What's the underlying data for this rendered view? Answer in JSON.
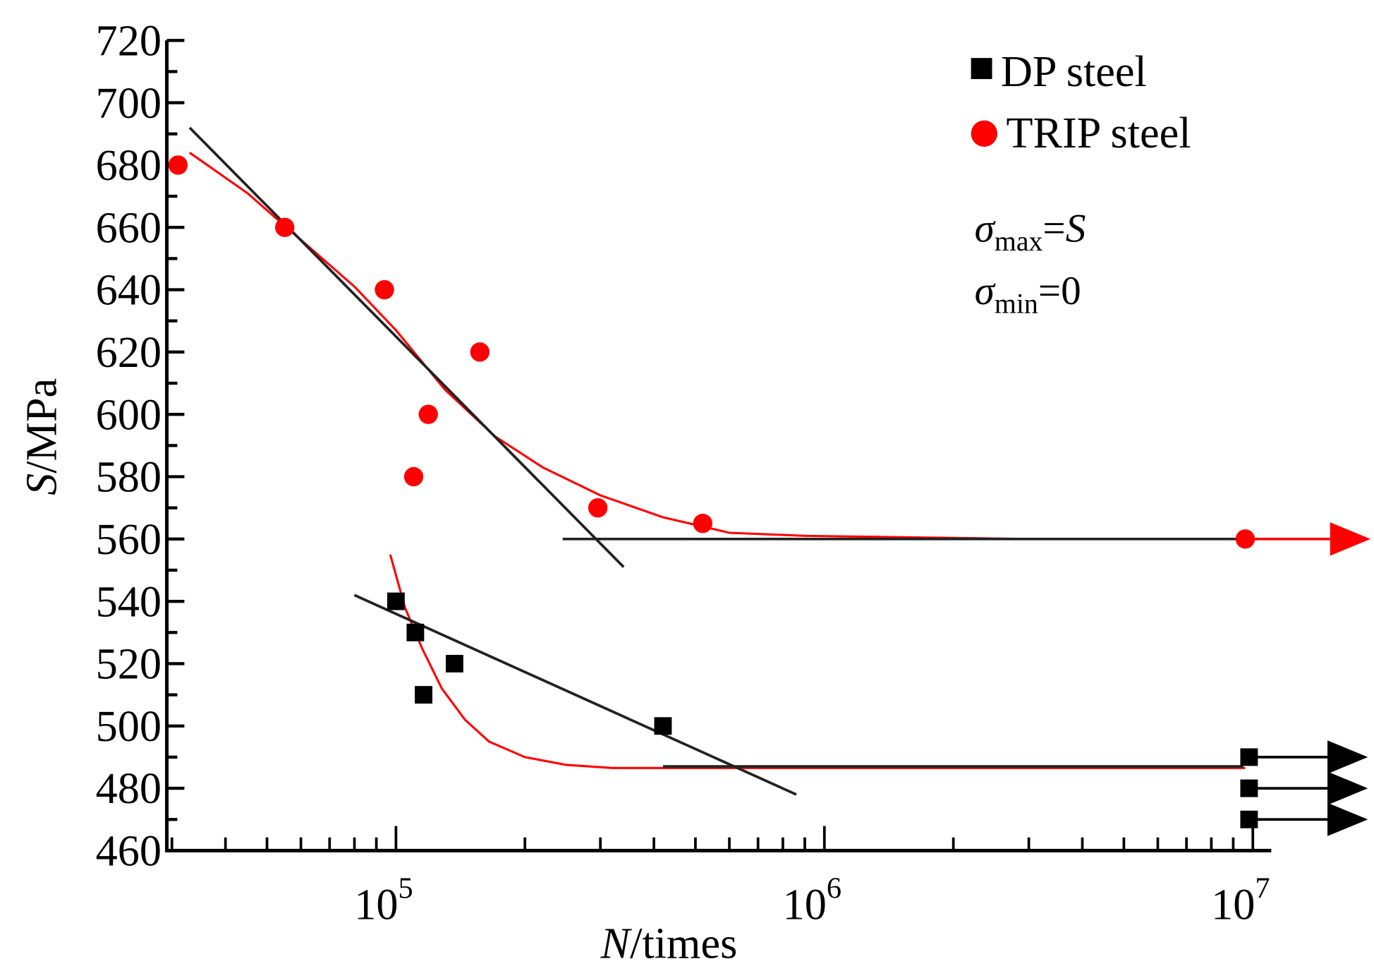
{
  "chart_data": {
    "type": "scatter",
    "title": "",
    "xlabel": {
      "italic": "N",
      "rest": "/times"
    },
    "ylabel": {
      "italic": "S",
      "rest": "/MPa"
    },
    "xscale": "log",
    "xlim": [
      29000,
      20000000
    ],
    "ylim": [
      460,
      720
    ],
    "grid": false,
    "legend_position": "top-right",
    "y_ticks": [
      460,
      480,
      500,
      520,
      540,
      560,
      580,
      600,
      620,
      640,
      660,
      680,
      700,
      720
    ],
    "y_tick_labels": [
      "460",
      "480",
      "500",
      "520",
      "540",
      "560",
      "580",
      "600",
      "620",
      "640",
      "660",
      "680",
      "700",
      "720"
    ],
    "x_major_ticks": [
      {
        "value": 100000,
        "base": "10",
        "exp": "5"
      },
      {
        "value": 1000000,
        "base": "10",
        "exp": "6"
      },
      {
        "value": 10000000,
        "base": "10",
        "exp": "7"
      }
    ],
    "series": [
      {
        "name": "DP steel",
        "marker": "square",
        "color": "#000000",
        "points": [
          {
            "x": 100000,
            "y": 540
          },
          {
            "x": 111000,
            "y": 530
          },
          {
            "x": 137000,
            "y": 520
          },
          {
            "x": 116000,
            "y": 510
          },
          {
            "x": 420000,
            "y": 500
          },
          {
            "x": 9800000,
            "y": 490,
            "runout": true
          },
          {
            "x": 9800000,
            "y": 480,
            "runout": true
          },
          {
            "x": 9800000,
            "y": 470,
            "runout": true
          }
        ]
      },
      {
        "name": "TRIP steel",
        "marker": "circle",
        "color": "#ff0000",
        "points": [
          {
            "x": 31000,
            "y": 680
          },
          {
            "x": 55000,
            "y": 660
          },
          {
            "x": 94000,
            "y": 640
          },
          {
            "x": 157000,
            "y": 620
          },
          {
            "x": 119000,
            "y": 600
          },
          {
            "x": 110000,
            "y": 580
          },
          {
            "x": 296000,
            "y": 570
          },
          {
            "x": 520000,
            "y": 565
          },
          {
            "x": 9600000,
            "y": 560,
            "runout": true
          }
        ]
      }
    ],
    "fit_lines": [
      {
        "name": "TRIP linear fit",
        "color": "#222222",
        "points": [
          {
            "x": 33000,
            "y": 692
          },
          {
            "x": 340000,
            "y": 551
          }
        ]
      },
      {
        "name": "TRIP fatigue limit",
        "color": "#222222",
        "points": [
          {
            "x": 245000,
            "y": 560
          },
          {
            "x": 9800000,
            "y": 560
          }
        ]
      },
      {
        "name": "DP linear fit",
        "color": "#222222",
        "points": [
          {
            "x": 80000,
            "y": 542
          },
          {
            "x": 860000,
            "y": 478
          }
        ]
      },
      {
        "name": "DP fatigue limit",
        "color": "#222222",
        "points": [
          {
            "x": 420000,
            "y": 487
          },
          {
            "x": 9500000,
            "y": 487
          }
        ]
      }
    ],
    "fit_curves": [
      {
        "name": "TRIP curve fit",
        "color": "#ff0000",
        "points": [
          {
            "x": 33000,
            "y": 684
          },
          {
            "x": 45000,
            "y": 671
          },
          {
            "x": 60000,
            "y": 656
          },
          {
            "x": 80000,
            "y": 641
          },
          {
            "x": 100000,
            "y": 627
          },
          {
            "x": 130000,
            "y": 608
          },
          {
            "x": 170000,
            "y": 593
          },
          {
            "x": 220000,
            "y": 583
          },
          {
            "x": 300000,
            "y": 574
          },
          {
            "x": 420000,
            "y": 567
          },
          {
            "x": 600000,
            "y": 562
          },
          {
            "x": 900000,
            "y": 561
          },
          {
            "x": 3000000,
            "y": 560
          },
          {
            "x": 9700000,
            "y": 560
          }
        ]
      },
      {
        "name": "DP curve fit",
        "color": "#ff0000",
        "points": [
          {
            "x": 97000,
            "y": 555
          },
          {
            "x": 105000,
            "y": 538
          },
          {
            "x": 115000,
            "y": 525
          },
          {
            "x": 128000,
            "y": 512
          },
          {
            "x": 145000,
            "y": 502
          },
          {
            "x": 165000,
            "y": 495
          },
          {
            "x": 200000,
            "y": 490
          },
          {
            "x": 250000,
            "y": 487.5
          },
          {
            "x": 320000,
            "y": 486.5
          },
          {
            "x": 500000,
            "y": 486.5
          },
          {
            "x": 9600000,
            "y": 486.5
          }
        ]
      }
    ],
    "runout_arrows": [
      {
        "series": "TRIP steel",
        "y": 560,
        "color": "#ff0000"
      },
      {
        "series": "DP steel",
        "y": 490,
        "color": "#000000"
      },
      {
        "series": "DP steel",
        "y": 480,
        "color": "#000000"
      },
      {
        "series": "DP steel",
        "y": 470,
        "color": "#000000"
      }
    ],
    "annotations": [
      {
        "symbol": "σ",
        "sub": "max",
        "eq": "=",
        "rhs": "S",
        "rhs_italic": true
      },
      {
        "symbol": "σ",
        "sub": "min",
        "eq": "=",
        "rhs": "0",
        "rhs_italic": false
      }
    ]
  }
}
